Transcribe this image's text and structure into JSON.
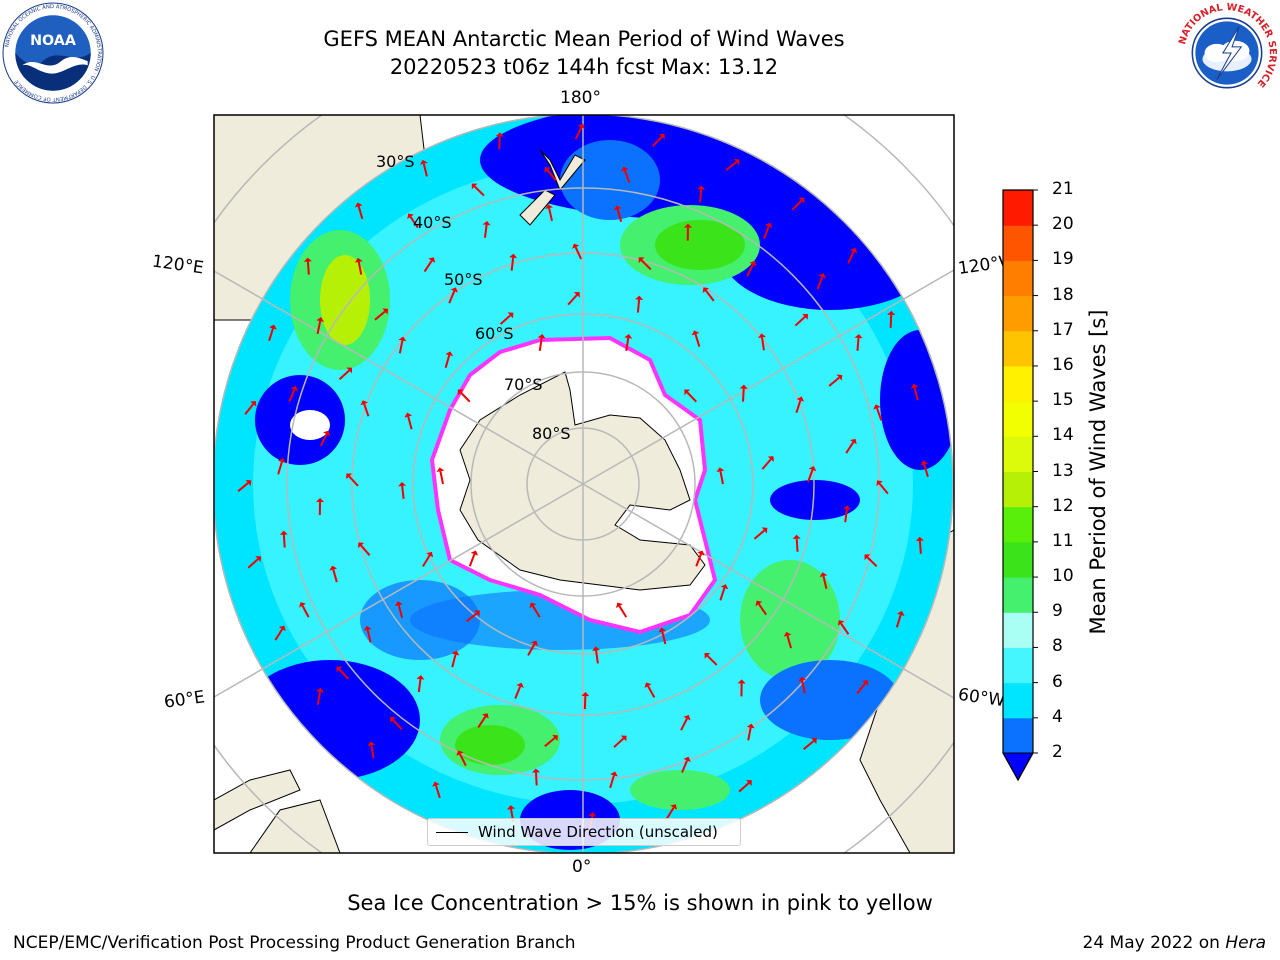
{
  "title": {
    "line1": "GEFS MEAN Antarctic Mean Period of Wind Waves",
    "line2": "20220523 t06z 144h fcst   Max: 13.12"
  },
  "logos": {
    "noaa": {
      "text": "NOAA",
      "ring_text": "NATIONAL OCEANIC AND ATMOSPHERIC ADMINISTRATION · U.S. DEPARTMENT OF COMMERCE"
    },
    "nws": {
      "ring_text": "NATIONAL WEATHER SERVICE"
    }
  },
  "map": {
    "projection": "south-polar-stereographic",
    "longitude_labels": [
      "180°",
      "120°E",
      "120°W",
      "60°E",
      "60°W",
      "0°"
    ],
    "latitude_labels": [
      "30°S",
      "40°S",
      "50°S",
      "60°S",
      "70°S",
      "80°S"
    ],
    "colors": {
      "land": "#efecdc",
      "ocean_dark_blue": "#0000ff",
      "ocean_blue": "#0a72ff",
      "ocean_cyan": "#00e5ff",
      "ocean_light_cyan": "#73f2ff",
      "ocean_green": "#44f06e",
      "ocean_bright_green": "#3be31b",
      "sea_ice_edge": "#ff33ff",
      "sea_ice": "#ffffff",
      "arrows": "#ff0000",
      "gridlines": "#b8b8b8"
    }
  },
  "legend": {
    "label": "Wind Wave Direction (unscaled)"
  },
  "colorbar": {
    "label": "Mean Period of Wind Waves [s]",
    "ticks": [
      "2",
      "4",
      "6",
      "8",
      "9",
      "10",
      "11",
      "12",
      "13",
      "14",
      "15",
      "16",
      "17",
      "18",
      "19",
      "20",
      "21"
    ],
    "colors": [
      "#0a72ff",
      "#00e5ff",
      "#45f6ff",
      "#a9fff4",
      "#44f06e",
      "#3be31b",
      "#59ef0b",
      "#b7f007",
      "#dbfb0a",
      "#f2ff00",
      "#fff100",
      "#ffc400",
      "#ff9d00",
      "#ff7e00",
      "#ff5500",
      "#ff1a00",
      "#ff0000"
    ],
    "under_color": "#0000ff"
  },
  "notes": {
    "sea_ice": "Sea Ice Concentration > 15% is shown in pink to yellow",
    "footer_left": "NCEP/EMC/Verification Post Processing Product Generation Branch",
    "footer_date": "24 May 2022 on ",
    "footer_machine": "Hera"
  }
}
